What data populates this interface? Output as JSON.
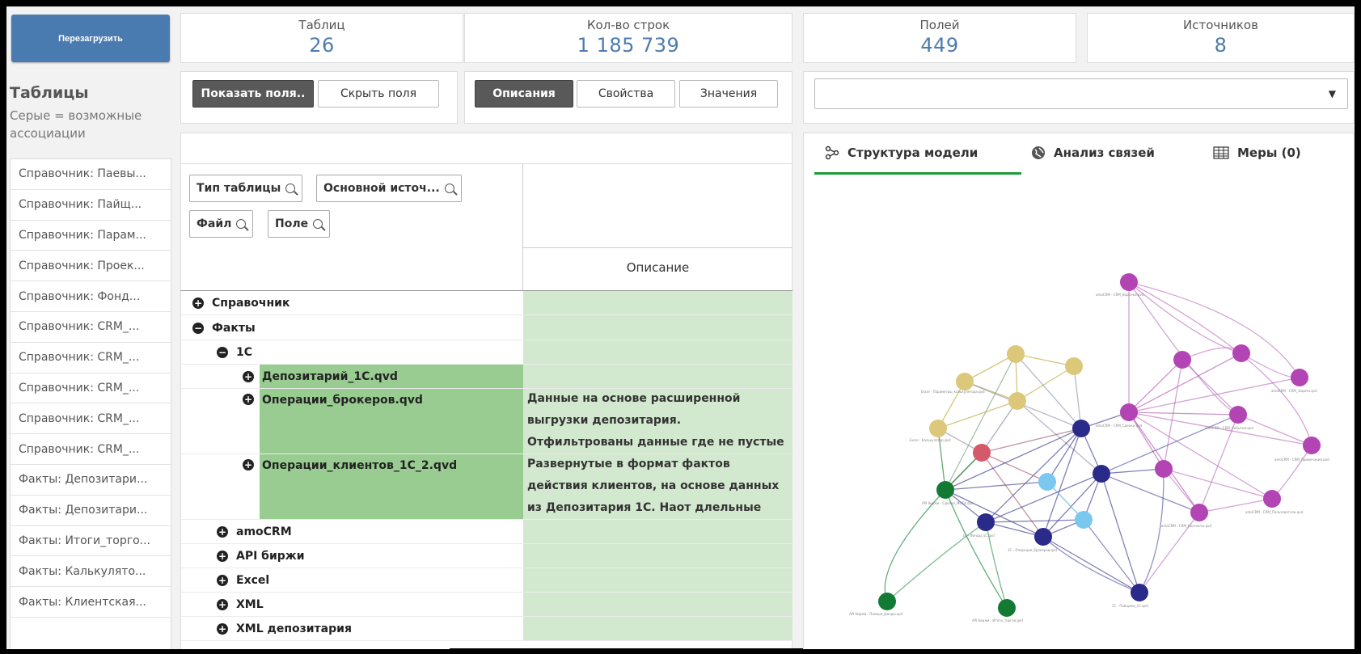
{
  "reload_label": "Перезагрузить",
  "kpis": [
    {
      "label": "Таблиц",
      "value": "26"
    },
    {
      "label": "Кол-во строк",
      "value": "1 185 739"
    },
    {
      "label": "Полей",
      "value": "449"
    },
    {
      "label": "Источников",
      "value": "8"
    }
  ],
  "field_buttons": {
    "show": "Показать поля..",
    "hide": "Скрыть поля"
  },
  "mode_buttons": {
    "descriptions": "Описания",
    "properties": "Свойства",
    "values": "Значения"
  },
  "left_panel": {
    "title": "Таблицы",
    "subtitle": "Серые = возможные ассоциации",
    "items": [
      "Справочник: Паевы...",
      "Справочник: Пайщ...",
      "Справочник: Парам...",
      "Справочник: Проек...",
      "Справочник: Фонд...",
      "Справочник: CRM_...",
      "Справочник: CRM_...",
      "Справочник: CRM_...",
      "Справочник: CRM_...",
      "Справочник: CRM_...",
      "Факты: Депозитари...",
      "Факты: Депозитари...",
      "Факты: Итоги_торго...",
      "Факты: Калькулято...",
      "Факты: Клиентская..."
    ]
  },
  "filters": {
    "table_type": "Тип таблицы",
    "main_source": "Основной источ...",
    "file": "Файл",
    "field": "Поле"
  },
  "table": {
    "desc_header": "Описание",
    "rows": [
      {
        "label": "Справочник",
        "sign": "+"
      },
      {
        "label": "Факты",
        "sign": "−"
      },
      {
        "label": "1C",
        "sign": "−"
      },
      {
        "label": "Депозитарий_1C.qvd",
        "sign": "+"
      },
      {
        "label": "Операции_брокеров.qvd",
        "sign": "+"
      },
      {
        "label": "Операции_клиентов_1C_2.qvd",
        "sign": "+"
      },
      {
        "label": "amoCRM",
        "sign": "+"
      },
      {
        "label": "API биржи",
        "sign": "+"
      },
      {
        "label": "Excel",
        "sign": "+"
      },
      {
        "label": "XML",
        "sign": "+"
      },
      {
        "label": "XML депозитария",
        "sign": "+"
      }
    ],
    "desc_1": "Данные на основе расширенной выгрузки депозитария. Отфильтрованы данные где не пустые",
    "desc_2": "Развернутые в формат фактов действия клиентов, на основе данных из Депозитария 1С. Наот длельные"
  },
  "graph_tabs": {
    "structure": "Структура модели",
    "links": "Анализ связей",
    "measures": "Меры (0)"
  },
  "graph_labels": {
    "n1": "amoCRM - CRM_Воронки.qvd",
    "n2": "Excel - Параметры_калькулятора.qvd",
    "n3": "Excel - Калькулятор.qvd",
    "n4": "API биржи - Сделки_MOEX.qvd",
    "n5": "API биржи - Паевые_фонды.qvd",
    "n6": "API биржи - Итоги_торгов.qvd",
    "n7": "1C - Фонды_1C.qvd",
    "n8": "1C - Операции_брокеров.qvd",
    "n9": "1C - Пайщики_1C.qvd",
    "n10": "amoCRM - CRM_Пользователи.qvd",
    "n11": "amoCRM - CRM_Контакты.qvd",
    "n12": "amoCRM - CRM_Задачи.qvd",
    "n13": "amoCRM - CRM_Примечания.qvd",
    "n14": "amoCRM - CRM_Сделки.qvd",
    "n15": "amoCRM - CRM_События.qvd"
  },
  "colors": {
    "accent": "#4c7cae",
    "tab_underline": "#1d9b3a",
    "desc_bg": "#d3e9cf",
    "highlight": "#99cc91"
  }
}
